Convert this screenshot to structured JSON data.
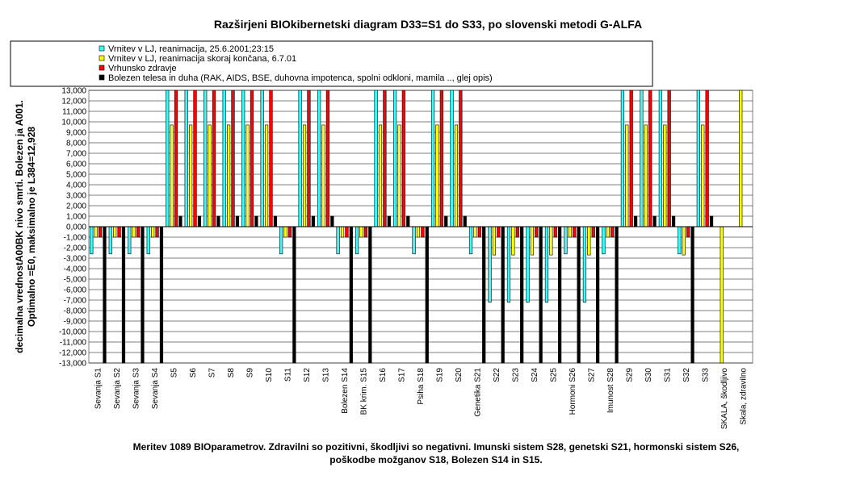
{
  "chart_data": {
    "type": "bar",
    "title": "Razširjeni BIOkibernetski diagram  D33=S1 do S33, po slovenski metodi G-ALFA",
    "ylabel_line1": "decimalna vrednostA00BK nivo smrti. Bolezen ja A001.",
    "ylabel_line2": "Optimalno =E0, maksimalno je L384=12,928",
    "xlabel": "",
    "ylim": [
      -13000,
      13000
    ],
    "yticks": [
      "13,000",
      "12,000",
      "11,000",
      "10,000",
      "9,000",
      "8,000",
      "7,000",
      "6,000",
      "5,000",
      "4,000",
      "3,000",
      "2,000",
      "1,000",
      "0,000",
      "-1,000",
      "-2,000",
      "-3,000",
      "-4,000",
      "-5,000",
      "-6,000",
      "-7,000",
      "-8,000",
      "-9,000",
      "-10,000",
      "-11,000",
      "-12,000",
      "-13,000"
    ],
    "grid": true,
    "legend_position": "top",
    "categories": [
      "Sevanja S1",
      "Sevanja S2",
      "Sevanja S3",
      "Sevanja S4",
      "S5",
      "S6",
      "S7",
      "S8",
      "S9",
      "S10",
      "S11",
      "S12",
      "S13",
      "Bolezen S14",
      "BK krim. S15",
      "S16",
      "S17",
      "Psiha S18",
      "S19",
      "S20",
      "Genetika S21",
      "S22",
      "S23",
      "S24",
      "S25",
      "Hormoni S26",
      "S27",
      "Imunost S28",
      "S29",
      "S30",
      "S31",
      "S32",
      "S33",
      "SKALA, škodljivo",
      "Skala, zdravilno"
    ],
    "series": [
      {
        "name": "Vrnitev v LJ, reanimacija, 25.6.2001;23:15",
        "color": "#33ffff",
        "values": [
          -2600,
          -2600,
          -2600,
          -2600,
          13000,
          13000,
          13000,
          13000,
          13000,
          13000,
          -2600,
          13000,
          13000,
          -2600,
          -2600,
          13000,
          13000,
          -2600,
          13000,
          13000,
          -2600,
          -7200,
          -7200,
          -7200,
          -7200,
          -2600,
          -7200,
          -2600,
          13000,
          13000,
          13000,
          -2600,
          13000,
          0,
          0
        ]
      },
      {
        "name": "Vrnitev v LJ, reanimacija skoraj končana, 6.7.01",
        "color": "#ffff00",
        "values": [
          -1000,
          -1000,
          -1000,
          -1000,
          9700,
          9700,
          9700,
          9700,
          9700,
          9700,
          -1000,
          9700,
          9700,
          -1000,
          -1000,
          9700,
          9700,
          -1000,
          9700,
          9700,
          -1000,
          -2700,
          -2700,
          -2700,
          -2700,
          -1000,
          -2700,
          -1000,
          9700,
          9700,
          9700,
          -2700,
          9700,
          -13000,
          13000
        ]
      },
      {
        "name": "Vrhunsko zdravje",
        "color": "#ff0000",
        "values": [
          -1000,
          -1000,
          -1000,
          -1000,
          13000,
          13000,
          13000,
          13000,
          13000,
          13000,
          -1000,
          13000,
          13000,
          -1000,
          -1000,
          13000,
          13000,
          -1000,
          13000,
          13000,
          -1000,
          -1000,
          -1000,
          -1000,
          -1000,
          -1000,
          -1000,
          -1000,
          13000,
          13000,
          13000,
          -1000,
          13000,
          0,
          0
        ]
      },
      {
        "name": "Bolezen telesa in duha (RAK, AIDS, BSE, duhovna impotenca, spolni odkloni, mamila .., glej opis)",
        "color": "#000000",
        "values": [
          -13000,
          -13000,
          -13000,
          -13000,
          1000,
          1000,
          1000,
          1000,
          1000,
          1000,
          -13000,
          1000,
          1000,
          -13000,
          -13000,
          1000,
          1000,
          -13000,
          1000,
          1000,
          -13000,
          -13000,
          -13000,
          -13000,
          -13000,
          -13000,
          -13000,
          -13000,
          1000,
          1000,
          1000,
          -13000,
          1000,
          0,
          0
        ]
      }
    ]
  },
  "caption_line1": "Meritev 1089 BIOparametrov. Zdravilni so pozitivni, škodljivi so negativni. Imunski sistem S28, genetski S21, hormonski sistem S26,",
  "caption_line2": "poškodbe možganov S18, Bolezen S14 in S15."
}
